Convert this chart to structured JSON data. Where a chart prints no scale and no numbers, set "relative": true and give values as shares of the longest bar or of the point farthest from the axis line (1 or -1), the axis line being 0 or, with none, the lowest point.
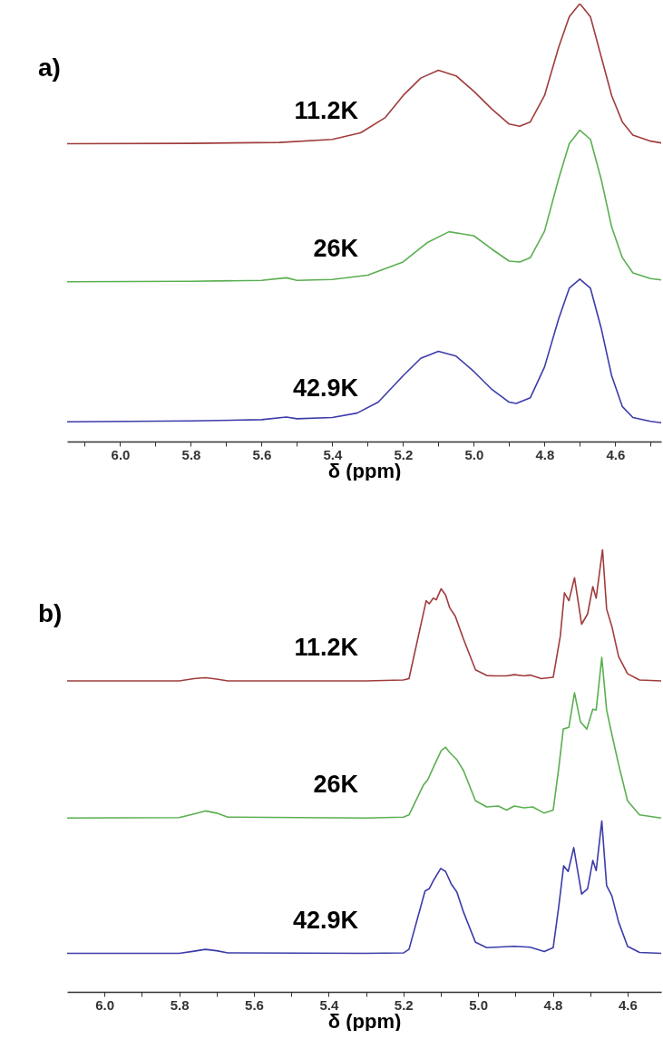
{
  "chart_data": [
    {
      "type": "line",
      "title": "a)",
      "xlabel": "δ (ppm)",
      "relative": true,
      "xlim": [
        6.15,
        4.47
      ],
      "xticks": [
        {
          "value": 6.1,
          "label": null
        },
        {
          "value": 6.0,
          "label": "6.0"
        },
        {
          "value": 5.9,
          "label": null
        },
        {
          "value": 5.8,
          "label": "5.8"
        },
        {
          "value": 5.7,
          "label": null
        },
        {
          "value": 5.6,
          "label": "5.6"
        },
        {
          "value": 5.5,
          "label": null
        },
        {
          "value": 5.4,
          "label": "5.4"
        },
        {
          "value": 5.3,
          "label": null
        },
        {
          "value": 5.2,
          "label": "5.2"
        },
        {
          "value": 5.1,
          "label": null
        },
        {
          "value": 5.0,
          "label": "5.0"
        },
        {
          "value": 4.9,
          "label": null
        },
        {
          "value": 4.8,
          "label": "4.8"
        },
        {
          "value": 4.7,
          "label": null
        },
        {
          "value": 4.6,
          "label": "4.6"
        },
        {
          "value": 4.5,
          "label": null
        }
      ],
      "grid": false,
      "series": [
        {
          "name": "11.2K",
          "color": "#a03c3c",
          "x": [
            6.15,
            5.8,
            5.55,
            5.4,
            5.32,
            5.25,
            5.2,
            5.15,
            5.1,
            5.05,
            5.0,
            4.95,
            4.9,
            4.87,
            4.84,
            4.8,
            4.76,
            4.73,
            4.7,
            4.67,
            4.64,
            4.61,
            4.58,
            4.55,
            4.5,
            4.47
          ],
          "values": [
            0.68,
            0.681,
            0.683,
            0.69,
            0.705,
            0.74,
            0.79,
            0.83,
            0.848,
            0.835,
            0.8,
            0.76,
            0.725,
            0.72,
            0.73,
            0.79,
            0.9,
            0.97,
            1.0,
            0.97,
            0.88,
            0.79,
            0.73,
            0.7,
            0.686,
            0.682
          ]
        },
        {
          "name": "26K",
          "color": "#5aaf50",
          "x": [
            6.15,
            5.8,
            5.6,
            5.53,
            5.5,
            5.4,
            5.3,
            5.2,
            5.13,
            5.07,
            5.0,
            4.95,
            4.9,
            4.87,
            4.84,
            4.8,
            4.76,
            4.73,
            4.7,
            4.67,
            4.64,
            4.61,
            4.58,
            4.55,
            4.5,
            4.47
          ],
          "values": [
            0.365,
            0.366,
            0.368,
            0.374,
            0.368,
            0.37,
            0.38,
            0.41,
            0.455,
            0.479,
            0.47,
            0.44,
            0.412,
            0.41,
            0.42,
            0.48,
            0.6,
            0.68,
            0.711,
            0.69,
            0.6,
            0.49,
            0.42,
            0.385,
            0.372,
            0.369
          ]
        },
        {
          "name": "42.9K",
          "color": "#3c3caa",
          "x": [
            6.15,
            5.8,
            5.6,
            5.53,
            5.5,
            5.4,
            5.33,
            5.27,
            5.2,
            5.15,
            5.1,
            5.05,
            5.0,
            4.95,
            4.9,
            4.88,
            4.84,
            4.8,
            4.76,
            4.73,
            4.7,
            4.67,
            4.64,
            4.61,
            4.58,
            4.55,
            4.5,
            4.47
          ],
          "values": [
            0.045,
            0.047,
            0.05,
            0.056,
            0.052,
            0.055,
            0.065,
            0.09,
            0.15,
            0.19,
            0.206,
            0.195,
            0.16,
            0.12,
            0.09,
            0.087,
            0.1,
            0.17,
            0.28,
            0.35,
            0.371,
            0.35,
            0.26,
            0.15,
            0.08,
            0.055,
            0.046,
            0.043
          ]
        }
      ]
    },
    {
      "type": "line",
      "title": "b)",
      "xlabel": "δ (ppm)",
      "relative": true,
      "xlim": [
        6.1,
        4.51
      ],
      "xticks": [
        {
          "value": 6.0,
          "label": "6.0"
        },
        {
          "value": 5.9,
          "label": null
        },
        {
          "value": 5.8,
          "label": "5.8"
        },
        {
          "value": 5.7,
          "label": null
        },
        {
          "value": 5.6,
          "label": "5.6"
        },
        {
          "value": 5.5,
          "label": null
        },
        {
          "value": 5.4,
          "label": "5.4"
        },
        {
          "value": 5.3,
          "label": null
        },
        {
          "value": 5.2,
          "label": "5.2"
        },
        {
          "value": 5.1,
          "label": null
        },
        {
          "value": 5.0,
          "label": "5.0"
        },
        {
          "value": 4.9,
          "label": null
        },
        {
          "value": 4.8,
          "label": "4.8"
        },
        {
          "value": 4.7,
          "label": null
        },
        {
          "value": 4.6,
          "label": "4.6"
        }
      ],
      "grid": false,
      "series": [
        {
          "name": "11.2K",
          "color": "#a03c3c",
          "x": [
            6.1,
            5.8,
            5.76,
            5.73,
            5.7,
            5.67,
            5.3,
            5.2,
            5.185,
            5.139,
            5.131,
            5.12,
            5.112,
            5.099,
            5.087,
            5.076,
            5.061,
            5.039,
            5.007,
            4.977,
            4.954,
            4.924,
            4.903,
            4.877,
            4.861,
            4.831,
            4.799,
            4.78,
            4.769,
            4.757,
            4.742,
            4.723,
            4.707,
            4.693,
            4.684,
            4.667,
            4.656,
            4.642,
            4.624,
            4.6,
            4.568,
            4.51
          ],
          "values": [
            0.703,
            0.703,
            0.708,
            0.71,
            0.707,
            0.703,
            0.703,
            0.705,
            0.708,
            0.884,
            0.877,
            0.89,
            0.886,
            0.911,
            0.897,
            0.868,
            0.849,
            0.797,
            0.728,
            0.715,
            0.714,
            0.714,
            0.717,
            0.714,
            0.716,
            0.708,
            0.711,
            0.804,
            0.902,
            0.884,
            0.936,
            0.831,
            0.854,
            0.916,
            0.89,
            1.0,
            0.865,
            0.826,
            0.758,
            0.719,
            0.705,
            0.703
          ]
        },
        {
          "name": "26K",
          "color": "#5aaf50",
          "x": [
            6.1,
            5.8,
            5.76,
            5.73,
            5.7,
            5.67,
            5.3,
            5.2,
            5.185,
            5.146,
            5.135,
            5.116,
            5.099,
            5.087,
            5.076,
            5.057,
            5.039,
            5.007,
            4.977,
            4.946,
            4.924,
            4.903,
            4.877,
            4.854,
            4.823,
            4.799,
            4.784,
            4.772,
            4.757,
            4.742,
            4.726,
            4.709,
            4.693,
            4.684,
            4.669,
            4.656,
            4.642,
            4.624,
            4.6,
            4.568,
            4.51
          ],
          "values": [
            0.393,
            0.394,
            0.402,
            0.409,
            0.404,
            0.395,
            0.393,
            0.395,
            0.4,
            0.468,
            0.479,
            0.514,
            0.545,
            0.553,
            0.541,
            0.525,
            0.5,
            0.432,
            0.418,
            0.42,
            0.411,
            0.42,
            0.416,
            0.418,
            0.404,
            0.411,
            0.507,
            0.594,
            0.598,
            0.676,
            0.61,
            0.594,
            0.639,
            0.637,
            0.756,
            0.637,
            0.582,
            0.514,
            0.432,
            0.4,
            0.393
          ]
        },
        {
          "name": "42.9K",
          "color": "#3c3caa",
          "x": [
            6.1,
            5.8,
            5.76,
            5.73,
            5.7,
            5.67,
            5.3,
            5.2,
            5.185,
            5.142,
            5.131,
            5.12,
            5.1,
            5.087,
            5.072,
            5.057,
            5.039,
            5.007,
            4.977,
            4.903,
            4.861,
            4.823,
            4.799,
            4.784,
            4.771,
            4.759,
            4.744,
            4.723,
            4.707,
            4.693,
            4.684,
            4.669,
            4.656,
            4.642,
            4.624,
            4.6,
            4.568,
            4.51
          ],
          "values": [
            0.087,
            0.087,
            0.092,
            0.096,
            0.093,
            0.088,
            0.087,
            0.088,
            0.096,
            0.228,
            0.233,
            0.251,
            0.279,
            0.272,
            0.244,
            0.226,
            0.18,
            0.112,
            0.1,
            0.103,
            0.101,
            0.091,
            0.1,
            0.194,
            0.285,
            0.272,
            0.326,
            0.221,
            0.233,
            0.297,
            0.274,
            0.386,
            0.24,
            0.217,
            0.158,
            0.103,
            0.089,
            0.087
          ]
        }
      ]
    }
  ]
}
